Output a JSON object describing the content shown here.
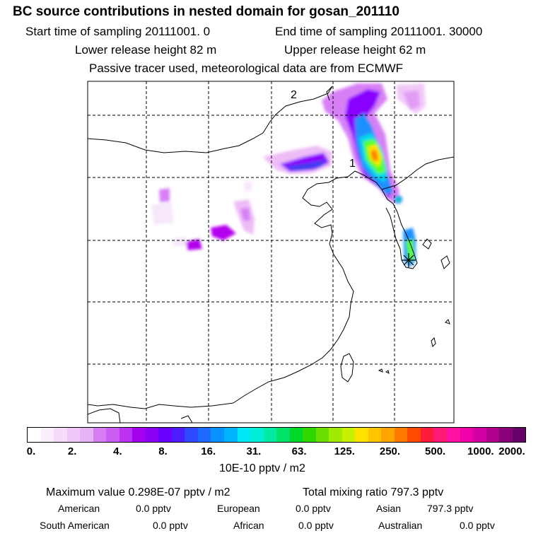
{
  "header": {
    "title": "BC  source contributions in nested domain for gosan_201110",
    "start_sampling": "Start time of sampling 20111001.     0",
    "end_sampling": "End time of sampling 20111001. 30000",
    "lower_release": "Lower release height   82 m",
    "upper_release": "Upper release height   62 m",
    "tracer_note": "Passive tracer used, meteorological data are from ECMWF"
  },
  "map": {
    "contour_labels": [
      "2",
      "1"
    ],
    "receptor_marker": "asterisk",
    "plume_colors": [
      "#f6e7fb",
      "#eebcf6",
      "#d780f6",
      "#b300ef",
      "#8a00ff",
      "#3c3cf0",
      "#1e90ff",
      "#00d7ea",
      "#00e08a",
      "#5aff28",
      "#ffe100",
      "#ff7a00"
    ]
  },
  "colorbar": {
    "tick_labels": [
      "0.",
      "2.",
      "4.",
      "8.",
      "16.",
      "31.",
      "63.",
      "125.",
      "250.",
      "500.",
      "1000.",
      "2000."
    ],
    "colors": [
      "#ffffff",
      "#fbeefc",
      "#f5dcfa",
      "#efc9f8",
      "#e7b2f6",
      "#d77ef4",
      "#cc5df2",
      "#bd32f0",
      "#a500ef",
      "#8a00f5",
      "#6a00ff",
      "#4b1dff",
      "#2f49ff",
      "#1e6cff",
      "#0891ff",
      "#00b3ff",
      "#00e8f8",
      "#00eed6",
      "#00e9a5",
      "#00e26a",
      "#00d82a",
      "#2fd600",
      "#6ae000",
      "#a0ea00",
      "#c9f000",
      "#ffe100",
      "#ffc400",
      "#ffa500",
      "#ff7a00",
      "#ff4a00",
      "#ff1c3a",
      "#ff1a78",
      "#ff10a0",
      "#f000a8",
      "#d200a4",
      "#b1008e",
      "#8a0078",
      "#660066"
    ],
    "unit": "10E-10 pptv / m2"
  },
  "stats": {
    "max_label": "Maximum value  0.298E-07 pptv / m2",
    "total_label": "Total mixing ratio      797.3 pptv",
    "regions": [
      {
        "name": "American",
        "value": "0.0 pptv"
      },
      {
        "name": "European",
        "value": "0.0 pptv"
      },
      {
        "name": "Asian",
        "value": "797.3 pptv"
      },
      {
        "name": "South American",
        "value": "0.0 pptv"
      },
      {
        "name": "African",
        "value": "0.0 pptv"
      },
      {
        "name": "Australian",
        "value": "0.0 pptv"
      }
    ]
  }
}
